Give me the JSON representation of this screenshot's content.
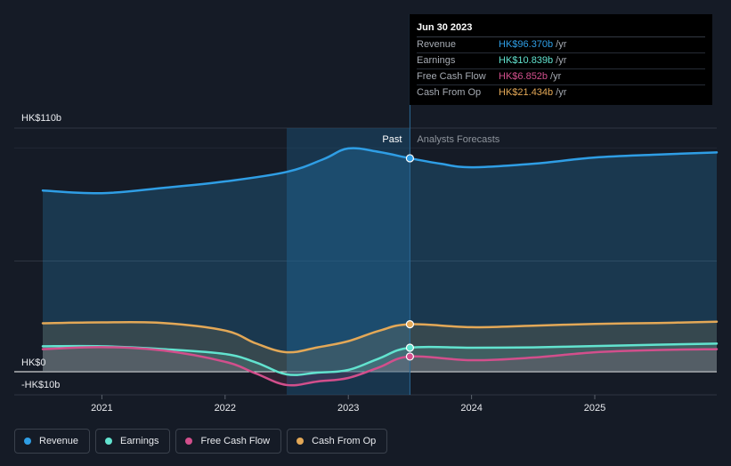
{
  "colors": {
    "background": "#151b26",
    "revenue": "#2f9ee5",
    "earnings": "#62e3cf",
    "free_cash_flow": "#d24f8c",
    "cash_from_op": "#e3a857",
    "past_region": "#1b4a6e"
  },
  "tooltip": {
    "date": "Jun 30 2023",
    "rows": [
      {
        "label": "Revenue",
        "value": "HK$96.370b",
        "unit": "/yr",
        "color": "#2f9ee5"
      },
      {
        "label": "Earnings",
        "value": "HK$10.839b",
        "unit": "/yr",
        "color": "#62e3cf"
      },
      {
        "label": "Free Cash Flow",
        "value": "HK$6.852b",
        "unit": "/yr",
        "color": "#d24f8c"
      },
      {
        "label": "Cash From Op",
        "value": "HK$21.434b",
        "unit": "/yr",
        "color": "#e3a857"
      }
    ]
  },
  "legend": [
    {
      "label": "Revenue",
      "color": "#2f9ee5"
    },
    {
      "label": "Earnings",
      "color": "#62e3cf"
    },
    {
      "label": "Free Cash Flow",
      "color": "#d24f8c"
    },
    {
      "label": "Cash From Op",
      "color": "#e3a857"
    }
  ],
  "chart_data": {
    "type": "line",
    "title": "",
    "xlabel": "",
    "ylabel": "",
    "x_range": [
      2020.52,
      2025.99
    ],
    "ylim": [
      -10,
      110
    ],
    "y_tick_labels": {
      "top": "HK$110b",
      "zero": "HK$0",
      "bottom": "-HK$10b"
    },
    "x_ticks": [
      2021,
      2022,
      2023,
      2024,
      2025
    ],
    "x_tick_labels": [
      "2021",
      "2022",
      "2023",
      "2024",
      "2025"
    ],
    "past_region": {
      "start": 2022.5,
      "end": 2023.5,
      "label": "Past"
    },
    "forecast_label": "Analysts Forecasts",
    "highlight_x": 2023.5,
    "series": [
      {
        "name": "Revenue",
        "color": "#2f9ee5",
        "x": [
          2020.52,
          2021.0,
          2021.5,
          2022.0,
          2022.5,
          2022.8,
          2023.0,
          2023.25,
          2023.5,
          2023.75,
          2024.0,
          2024.5,
          2025.0,
          2025.5,
          2025.99
        ],
        "y": [
          81.8,
          80.6,
          83.0,
          85.9,
          90.2,
          96.0,
          100.8,
          99.2,
          96.37,
          93.9,
          92.3,
          93.9,
          96.7,
          98.0,
          99.0
        ]
      },
      {
        "name": "Earnings",
        "color": "#62e3cf",
        "x": [
          2020.52,
          2021.0,
          2021.5,
          2022.0,
          2022.25,
          2022.5,
          2022.75,
          2023.0,
          2023.25,
          2023.5,
          2024.0,
          2024.5,
          2025.0,
          2025.5,
          2025.99
        ],
        "y": [
          11.5,
          11.5,
          10.2,
          8.0,
          4.2,
          -1.2,
          -0.4,
          0.8,
          6.0,
          10.839,
          10.839,
          11.0,
          11.6,
          12.2,
          12.7
        ]
      },
      {
        "name": "Free Cash Flow",
        "color": "#d24f8c",
        "x": [
          2020.52,
          2021.0,
          2021.5,
          2022.0,
          2022.25,
          2022.5,
          2022.75,
          2023.0,
          2023.25,
          2023.5,
          2024.0,
          2024.5,
          2025.0,
          2025.5,
          2025.99
        ],
        "y": [
          10.2,
          11.1,
          9.6,
          4.5,
          -0.8,
          -6.0,
          -4.4,
          -2.8,
          2.0,
          6.852,
          5.2,
          6.4,
          8.8,
          9.8,
          10.2
        ]
      },
      {
        "name": "Cash From Op",
        "color": "#e3a857",
        "x": [
          2020.52,
          2021.0,
          2021.5,
          2022.0,
          2022.25,
          2022.5,
          2022.75,
          2023.0,
          2023.25,
          2023.5,
          2024.0,
          2024.5,
          2025.0,
          2025.5,
          2025.99
        ],
        "y": [
          21.9,
          22.3,
          22.0,
          18.6,
          12.8,
          8.8,
          11.0,
          13.8,
          18.5,
          21.434,
          20.1,
          20.8,
          21.6,
          22.0,
          22.6
        ]
      }
    ]
  }
}
